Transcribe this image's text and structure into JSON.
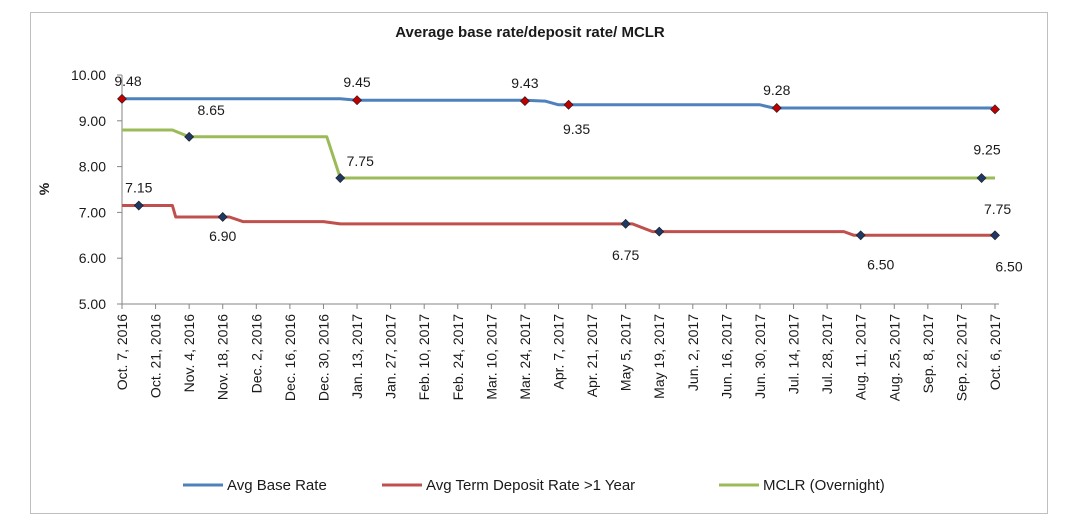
{
  "chart_data": {
    "type": "line",
    "title": "Average base rate/deposit rate/ MCLR",
    "ylabel": "%",
    "xlabel": "",
    "ylim": [
      5.0,
      10.0
    ],
    "yticks": [
      "5.00",
      "6.00",
      "7.00",
      "8.00",
      "9.00",
      "10.00"
    ],
    "ytick_values": [
      5,
      6,
      7,
      8,
      9,
      10
    ],
    "grid": false,
    "legend_position": "bottom",
    "x": [
      "Oct. 7, 2016",
      "Oct. 21, 2016",
      "Nov. 4, 2016",
      "Nov. 18, 2016",
      "Dec. 2, 2016",
      "Dec. 16, 2016",
      "Dec. 30, 2016",
      "Jan. 13, 2017",
      "Jan. 27, 2017",
      "Feb. 10, 2017",
      "Feb. 24, 2017",
      "Mar. 10, 2017",
      "Mar. 24, 2017",
      "Apr. 7, 2017",
      "Apr. 21, 2017",
      "May 5, 2017",
      "May 19, 2017",
      "Jun. 2, 2017",
      "Jun. 16, 2017",
      "Jun. 30, 2017",
      "Jul. 14, 2017",
      "Jul. 28, 2017",
      "Aug. 11, 2017",
      "Aug. 25, 2017",
      "Sep. 8, 2017",
      "Sep. 22, 2017",
      "Oct. 6, 2017"
    ],
    "series": [
      {
        "name": "Avg Base Rate",
        "color": "#4f81bd",
        "marker_color": "#c00000",
        "points": [
          [
            0,
            9.48
          ],
          [
            6.5,
            9.48
          ],
          [
            7,
            9.45
          ],
          [
            12,
            9.45
          ],
          [
            12.6,
            9.43
          ],
          [
            13,
            9.35
          ],
          [
            19,
            9.35
          ],
          [
            19.4,
            9.28
          ],
          [
            26,
            9.28
          ],
          [
            26,
            9.25
          ]
        ],
        "markers": [
          {
            "x": 0,
            "y": 9.48,
            "label": "9.48"
          },
          {
            "x": 7,
            "y": 9.45,
            "label": "9.45"
          },
          {
            "x": 12,
            "y": 9.43,
            "label": "9.43"
          },
          {
            "x": 13.3,
            "y": 9.35,
            "label": "9.35"
          },
          {
            "x": 19.5,
            "y": 9.28,
            "label": "9.28"
          },
          {
            "x": 26,
            "y": 9.25,
            "label": "9.25"
          }
        ]
      },
      {
        "name": "Avg Term Deposit Rate >1 Year",
        "color": "#c0504d",
        "marker_color": "#1f3864",
        "points": [
          [
            0,
            7.15
          ],
          [
            1.5,
            7.15
          ],
          [
            1.6,
            6.9
          ],
          [
            3.2,
            6.9
          ],
          [
            3.6,
            6.8
          ],
          [
            6,
            6.8
          ],
          [
            6.5,
            6.75
          ],
          [
            15.2,
            6.75
          ],
          [
            15.8,
            6.58
          ],
          [
            21.5,
            6.58
          ],
          [
            21.8,
            6.5
          ],
          [
            26,
            6.5
          ]
        ],
        "markers": [
          {
            "x": 0.5,
            "y": 7.15,
            "label": "7.15"
          },
          {
            "x": 3,
            "y": 6.9,
            "label": "6.90"
          },
          {
            "x": 15,
            "y": 6.75,
            "label": "6.75"
          },
          {
            "x": 16,
            "y": 6.58,
            "label": ""
          },
          {
            "x": 22,
            "y": 6.5,
            "label": "6.50"
          },
          {
            "x": 26,
            "y": 6.5,
            "label": "6.50"
          }
        ]
      },
      {
        "name": "MCLR (Overnight)",
        "color": "#9bbb59",
        "marker_color": "#1f3864",
        "points": [
          [
            0,
            8.8
          ],
          [
            1.5,
            8.8
          ],
          [
            2,
            8.65
          ],
          [
            6.1,
            8.65
          ],
          [
            6.5,
            7.75
          ],
          [
            26,
            7.75
          ]
        ],
        "markers": [
          {
            "x": 2,
            "y": 8.65,
            "label": "8.65"
          },
          {
            "x": 6.5,
            "y": 7.75,
            "label": "7.75"
          },
          {
            "x": 25.6,
            "y": 7.75,
            "label": "7.75"
          }
        ]
      }
    ]
  }
}
